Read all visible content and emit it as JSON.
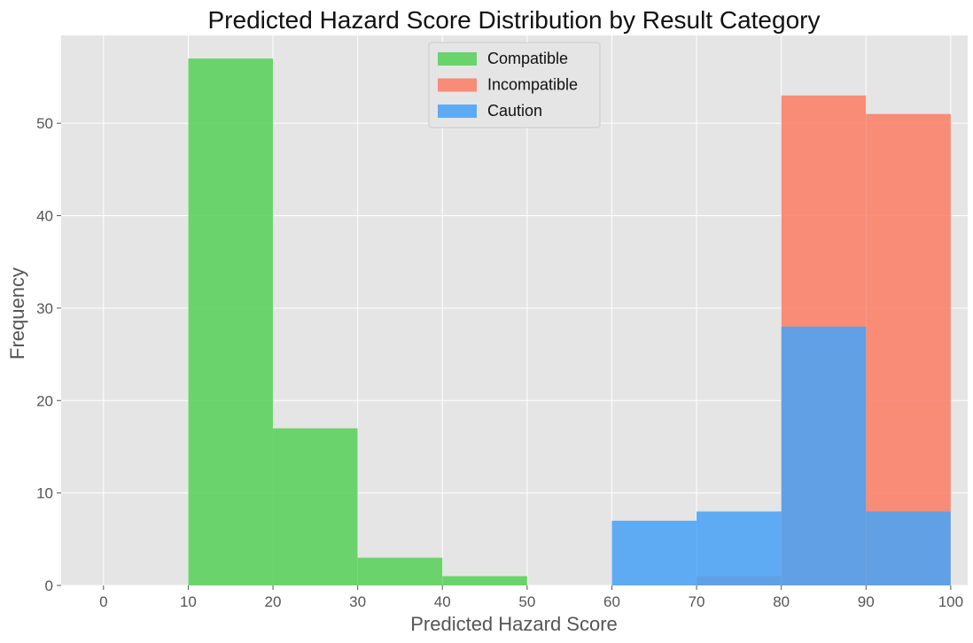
{
  "chart_data": {
    "type": "bar",
    "subtype": "overlapping-histogram",
    "title": "Predicted Hazard Score Distribution by Result Category",
    "xlabel": "Predicted Hazard Score",
    "ylabel": "Frequency",
    "xlim": [
      -5,
      102
    ],
    "ylim": [
      0,
      59.5
    ],
    "xticks": [
      0,
      10,
      20,
      30,
      40,
      50,
      60,
      70,
      80,
      90,
      100
    ],
    "yticks": [
      0,
      10,
      20,
      30,
      40,
      50
    ],
    "bin_edges": [
      0,
      10,
      20,
      30,
      40,
      50,
      60,
      70,
      80,
      90,
      100
    ],
    "grid": true,
    "legend_position": "top-center",
    "series": [
      {
        "name": "Compatible",
        "color": "#5ad05a",
        "counts": [
          0,
          57,
          17,
          3,
          1,
          0,
          0,
          0,
          0,
          0
        ]
      },
      {
        "name": "Incompatible",
        "color": "#fa8068",
        "counts": [
          0,
          0,
          0,
          0,
          0,
          0,
          0,
          1,
          53,
          51
        ]
      },
      {
        "name": "Caution",
        "color": "#4ba3f5",
        "counts": [
          0,
          0,
          0,
          0,
          0,
          0,
          7,
          8,
          28,
          8
        ]
      }
    ]
  }
}
